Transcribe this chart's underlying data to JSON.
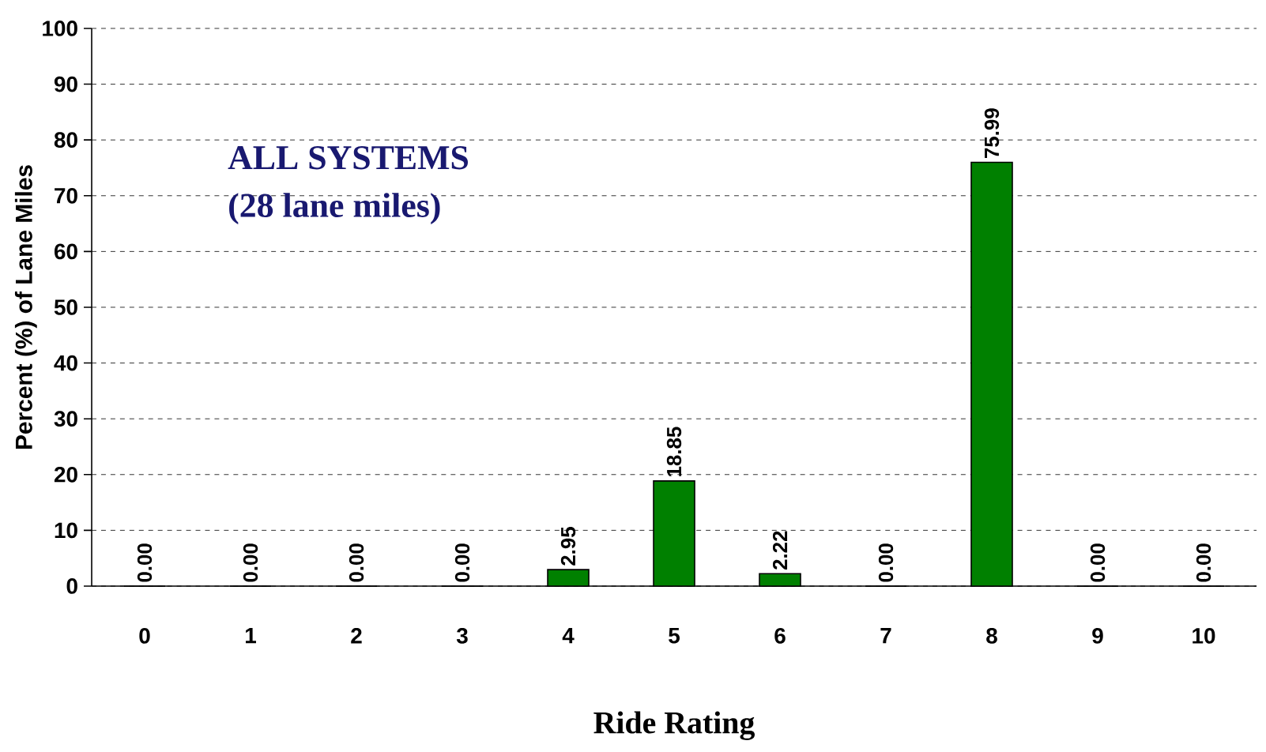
{
  "chart_data": {
    "type": "bar",
    "xlabel": "Ride Rating",
    "ylabel": "Percent (%) of Lane Miles",
    "annotations": [
      "ALL SYSTEMS",
      "(28 lane miles)"
    ],
    "categories": [
      "0",
      "1",
      "2",
      "3",
      "4",
      "5",
      "6",
      "7",
      "8",
      "9",
      "10"
    ],
    "values": [
      0,
      0,
      0,
      0,
      2.95,
      18.85,
      2.22,
      0,
      75.99,
      0,
      0
    ],
    "value_labels": [
      "0.00",
      "0.00",
      "0.00",
      "0.00",
      "2.95",
      "18.85",
      "2.22",
      "0.00",
      "75.99",
      "0.00",
      "0.00"
    ],
    "color": "#008000",
    "ylim": [
      0,
      100
    ],
    "yticks": [
      0,
      10,
      20,
      30,
      40,
      50,
      60,
      70,
      80,
      90,
      100
    ],
    "grid": "y"
  }
}
